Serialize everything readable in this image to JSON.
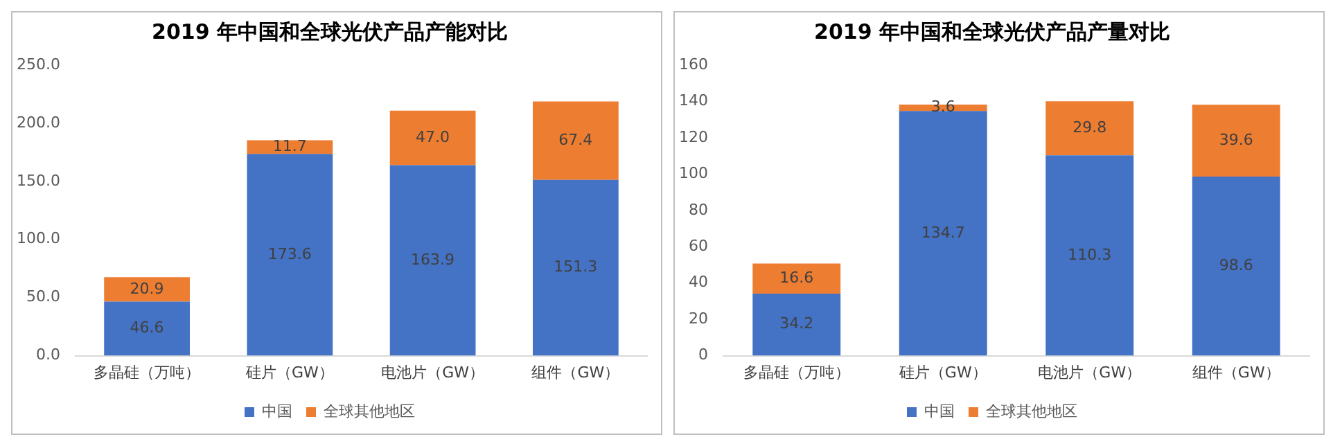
{
  "chart_data": [
    {
      "type": "bar",
      "title": "2019 年中国和全球光伏产品产能对比",
      "categories": [
        "多晶硅（万吨）",
        "硅片（GW）",
        "电池片（GW）",
        "组件（GW）"
      ],
      "stacked": true,
      "legend": "bottom",
      "ylim": [
        0,
        250
      ],
      "yticks": [
        {
          "value": 0,
          "label": "0.0"
        },
        {
          "value": 50,
          "label": "50.0"
        },
        {
          "value": 100,
          "label": "100.0"
        },
        {
          "value": 150,
          "label": "150.0"
        },
        {
          "value": 200,
          "label": "200.0"
        },
        {
          "value": 250,
          "label": "250.0"
        }
      ],
      "series": [
        {
          "name": "中国",
          "color": "#4472c4",
          "values": [
            46.6,
            173.6,
            163.9,
            151.3
          ],
          "value_labels": [
            "46.6",
            "173.6",
            "163.9",
            "151.3"
          ]
        },
        {
          "name": "全球其他地区",
          "color": "#ed7d31",
          "values": [
            20.9,
            11.7,
            47.0,
            67.4
          ],
          "value_labels": [
            "20.9",
            "11.7",
            "47.0",
            "67.4"
          ]
        }
      ]
    },
    {
      "type": "bar",
      "title": "2019 年中国和全球光伏产品产量对比",
      "categories": [
        "多晶硅（万吨）",
        "硅片（GW）",
        "电池片（GW）",
        "组件（GW）"
      ],
      "stacked": true,
      "legend": "bottom",
      "ylim": [
        0,
        160
      ],
      "yticks": [
        0,
        20,
        40,
        60,
        80,
        100,
        120,
        140,
        160
      ],
      "series": [
        {
          "name": "中国",
          "color": "#4472c4",
          "values": [
            34.2,
            134.7,
            110.3,
            98.6
          ],
          "value_labels": [
            "34.2",
            "134.7",
            "110.3",
            "98.6"
          ]
        },
        {
          "name": "全球其他地区",
          "color": "#ed7d31",
          "values": [
            16.6,
            3.6,
            29.8,
            39.6
          ],
          "value_labels": [
            "16.6",
            "3.6",
            "29.8",
            "39.6"
          ]
        }
      ]
    }
  ]
}
